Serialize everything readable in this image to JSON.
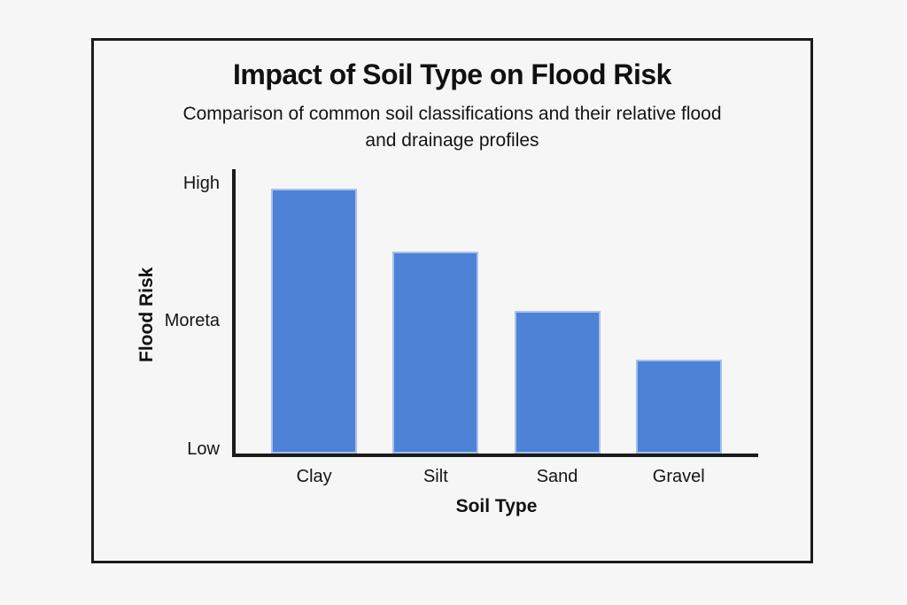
{
  "page": {
    "background": "#f7f7f8"
  },
  "card": {
    "border_color": "#1b1b1b",
    "background": "#f6f6f7",
    "title": "Impact of Soil Type on Flood Risk",
    "subtitle_line1": "Comparison of common soil classifications and their relative flood",
    "subtitle_line2": "and drainage profiles"
  },
  "chart_data": {
    "type": "bar",
    "title": "Impact of Soil Type on Flood Risk",
    "subtitle": "Comparison of common soil classifications and their relative flood and drainage profiles",
    "xlabel": "Soil Type",
    "ylabel": "Flood Risk",
    "categories": [
      "Clay",
      "Silt",
      "Sand",
      "Gravel"
    ],
    "values": [
      93,
      71,
      50,
      33
    ],
    "ylim": [
      0,
      100
    ],
    "ytick_labels": [
      "High",
      "Moreta",
      "Low"
    ],
    "bar_color": "#4d82d6",
    "axis_color": "#1b1b1b",
    "grid": false,
    "legend": false
  }
}
